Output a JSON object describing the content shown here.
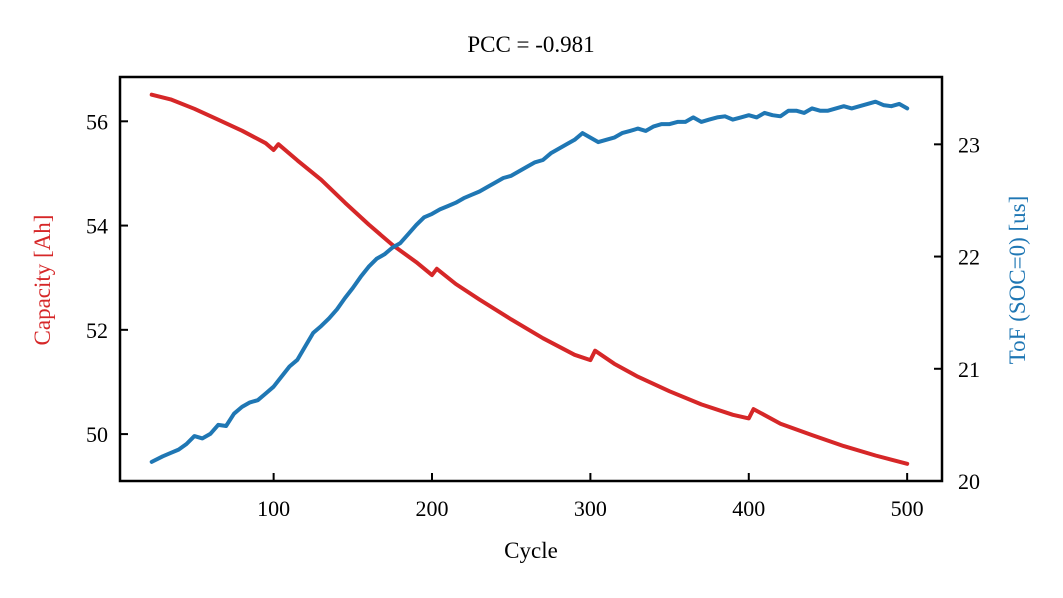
{
  "chart_data": {
    "type": "line",
    "title": "PCC = -0.981",
    "xlabel": "Cycle",
    "ylabel_left": "Capacity [Ah]",
    "ylabel_right": "ToF (SOC=0) [us]",
    "colors": {
      "left": "#d62728",
      "right": "#1f77b4"
    },
    "xlim": [
      3,
      522
    ],
    "ylim_left": [
      49.1,
      56.85
    ],
    "ylim_right": [
      20.0,
      23.6
    ],
    "x_ticks": [
      100,
      200,
      300,
      400,
      500
    ],
    "x_tick_labels": [
      "100",
      "200",
      "300",
      "400",
      "500"
    ],
    "y_left_ticks": [
      50,
      52,
      54,
      56
    ],
    "y_left_tick_labels": [
      "50",
      "52",
      "54",
      "56"
    ],
    "y_right_ticks": [
      20,
      21,
      22,
      23
    ],
    "y_right_tick_labels": [
      "20",
      "21",
      "22",
      "23"
    ],
    "series": [
      {
        "name": "Capacity [Ah]",
        "axis": "left",
        "x": [
          23,
          35,
          50,
          65,
          80,
          95,
          100,
          103,
          115,
          130,
          145,
          160,
          175,
          190,
          200,
          203,
          215,
          230,
          250,
          270,
          290,
          300,
          303,
          315,
          330,
          350,
          370,
          390,
          400,
          403,
          420,
          440,
          460,
          480,
          500
        ],
        "values": [
          56.51,
          56.42,
          56.24,
          56.03,
          55.82,
          55.58,
          55.45,
          55.56,
          55.25,
          54.88,
          54.44,
          54.02,
          53.63,
          53.3,
          53.05,
          53.17,
          52.88,
          52.58,
          52.2,
          51.84,
          51.52,
          51.42,
          51.6,
          51.35,
          51.1,
          50.82,
          50.57,
          50.37,
          50.3,
          50.48,
          50.2,
          49.98,
          49.77,
          49.59,
          49.43
        ]
      },
      {
        "name": "ToF (SOC=0) [us]",
        "axis": "right",
        "x": [
          23,
          30,
          35,
          40,
          45,
          50,
          55,
          60,
          65,
          70,
          75,
          80,
          85,
          90,
          95,
          100,
          105,
          110,
          115,
          120,
          125,
          130,
          135,
          140,
          145,
          150,
          155,
          160,
          165,
          170,
          175,
          180,
          185,
          190,
          195,
          200,
          205,
          210,
          215,
          220,
          225,
          230,
          235,
          240,
          245,
          250,
          255,
          260,
          265,
          270,
          275,
          280,
          285,
          290,
          295,
          300,
          305,
          310,
          315,
          320,
          325,
          330,
          335,
          340,
          345,
          350,
          355,
          360,
          365,
          370,
          375,
          380,
          385,
          390,
          395,
          400,
          405,
          410,
          415,
          420,
          425,
          430,
          435,
          440,
          445,
          450,
          455,
          460,
          465,
          470,
          475,
          480,
          485,
          490,
          495,
          500
        ],
        "values": [
          20.17,
          20.22,
          20.25,
          20.28,
          20.33,
          20.4,
          20.38,
          20.42,
          20.5,
          20.49,
          20.6,
          20.66,
          20.7,
          20.72,
          20.78,
          20.84,
          20.93,
          21.02,
          21.08,
          21.2,
          21.32,
          21.38,
          21.45,
          21.53,
          21.63,
          21.72,
          21.82,
          21.91,
          21.98,
          22.02,
          22.08,
          22.12,
          22.2,
          22.28,
          22.35,
          22.38,
          22.42,
          22.45,
          22.48,
          22.52,
          22.55,
          22.58,
          22.62,
          22.66,
          22.7,
          22.72,
          22.76,
          22.8,
          22.84,
          22.86,
          22.92,
          22.96,
          23.0,
          23.04,
          23.1,
          23.06,
          23.02,
          23.04,
          23.06,
          23.1,
          23.12,
          23.14,
          23.12,
          23.16,
          23.18,
          23.18,
          23.2,
          23.2,
          23.24,
          23.2,
          23.22,
          23.24,
          23.25,
          23.22,
          23.24,
          23.26,
          23.24,
          23.28,
          23.26,
          23.25,
          23.3,
          23.3,
          23.28,
          23.32,
          23.3,
          23.3,
          23.32,
          23.34,
          23.32,
          23.34,
          23.36,
          23.38,
          23.35,
          23.34,
          23.36,
          23.32
        ]
      }
    ]
  }
}
